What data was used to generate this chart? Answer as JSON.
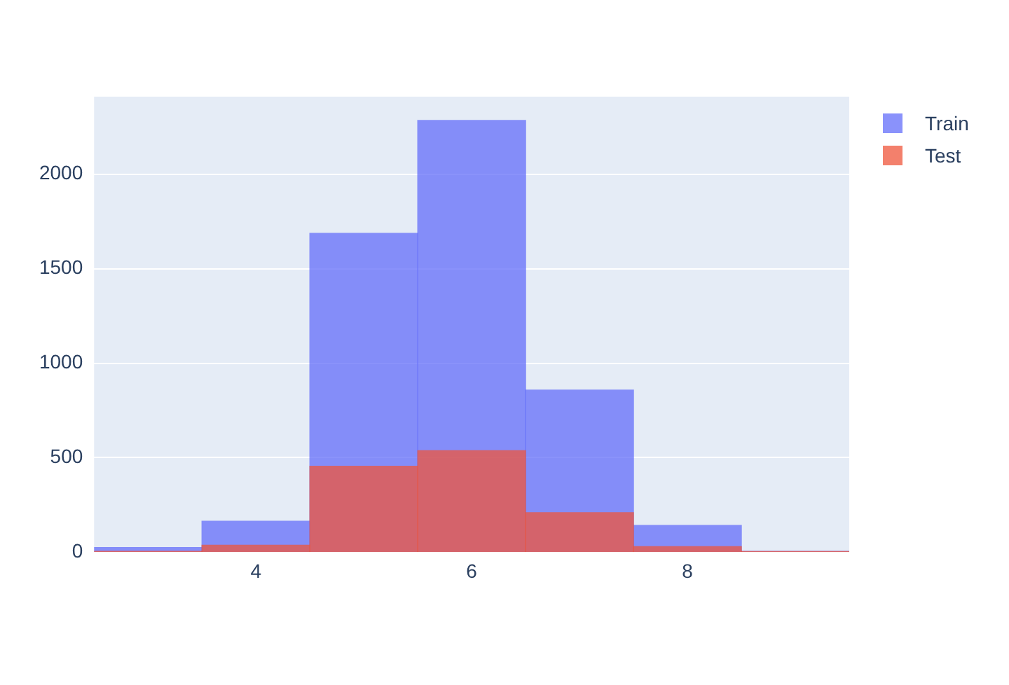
{
  "chart_data": {
    "type": "histogram",
    "bins": [
      2.5,
      3.5,
      4.5,
      5.5,
      6.5,
      7.5,
      8.5,
      9.5
    ],
    "series": [
      {
        "name": "Train",
        "color": "#636efa",
        "values": [
          25,
          164,
          1687,
          2284,
          858,
          142,
          5
        ]
      },
      {
        "name": "Test",
        "color": "#ef553b",
        "values": [
          5,
          37,
          455,
          537,
          209,
          30,
          3
        ]
      }
    ],
    "xlim": [
      2.5,
      9.5
    ],
    "xticks": [
      4,
      6,
      8
    ],
    "ylim": [
      0,
      2410
    ],
    "yticks": [
      0,
      500,
      1000,
      1500,
      2000
    ],
    "grid": "y",
    "legend": "top right"
  }
}
